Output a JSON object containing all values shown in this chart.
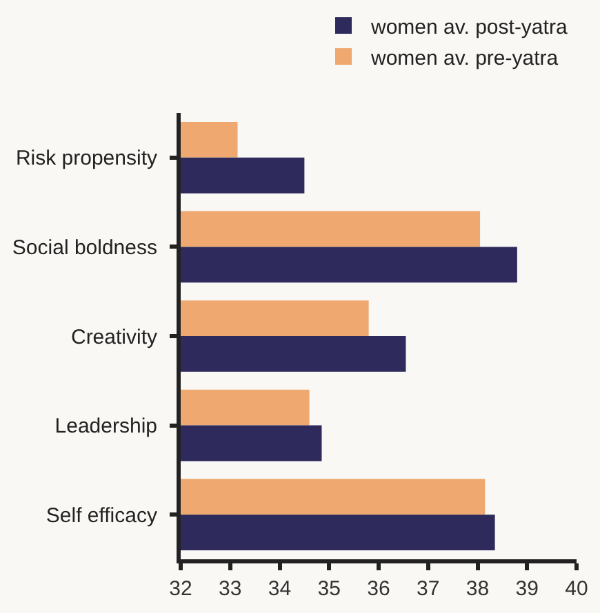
{
  "chart_data": {
    "type": "bar",
    "orientation": "horizontal",
    "categories": [
      "Risk propensity",
      "Social boldness",
      "Creativity",
      "Leadership",
      "Self efficacy"
    ],
    "series": [
      {
        "name": "women av. post-yatra",
        "color": "#2e2b5c",
        "values": [
          34.5,
          38.8,
          36.55,
          34.85,
          38.35
        ]
      },
      {
        "name": "women av. pre-yatra",
        "color": "#eea870",
        "values": [
          33.15,
          38.05,
          35.8,
          34.6,
          38.15
        ]
      }
    ],
    "xlim": [
      32,
      40
    ],
    "xticks": [
      32,
      33,
      34,
      35,
      36,
      37,
      38,
      39,
      40
    ],
    "grid": false,
    "legend": "top"
  }
}
